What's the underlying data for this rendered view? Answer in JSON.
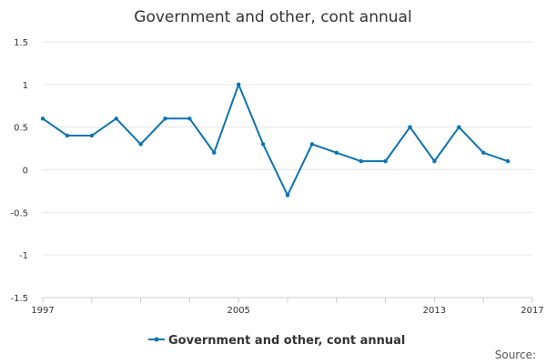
{
  "chart_data": {
    "type": "line",
    "title": "Government and other, cont annual",
    "xlabel": "",
    "ylabel": "",
    "x": [
      1997,
      1998,
      1999,
      2000,
      2001,
      2002,
      2003,
      2004,
      2005,
      2006,
      2007,
      2008,
      2009,
      2010,
      2011,
      2012,
      2013,
      2014,
      2015,
      2016
    ],
    "series": [
      {
        "name": "Government and other, cont annual",
        "color": "#0b73b2",
        "values": [
          0.6,
          0.4,
          0.4,
          0.6,
          0.3,
          0.6,
          0.6,
          0.2,
          1.0,
          0.3,
          -0.3,
          0.3,
          0.2,
          0.1,
          0.1,
          0.5,
          0.1,
          0.5,
          0.2,
          0.1
        ]
      }
    ],
    "xlim": [
      1997,
      2017
    ],
    "ylim": [
      -1.5,
      1.5
    ],
    "x_tick_labels": [
      "1997",
      "2005",
      "2013",
      "2017"
    ],
    "y_tick_labels": [
      "1.5",
      "1",
      "0.5",
      "0",
      "-0.5",
      "-1",
      "-1.5"
    ],
    "grid": true,
    "legend_position": "bottom-center"
  },
  "footer": {
    "source_label": "Source:"
  }
}
